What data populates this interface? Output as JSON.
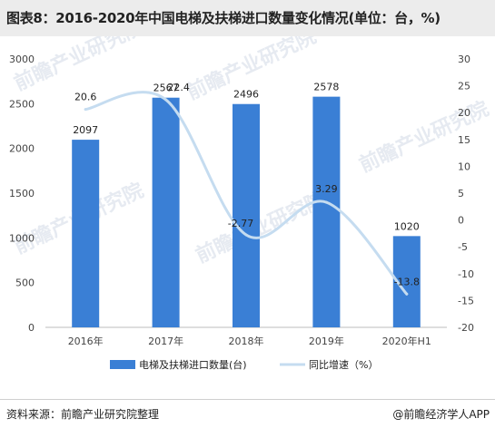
{
  "header": {
    "title": "图表8：2016-2020年中国电梯及扶梯进口数量变化情况(单位：台，%)"
  },
  "footer": {
    "source": "资料来源：前瞻产业研究院整理",
    "brand": "@前瞻经济学人APP"
  },
  "watermark": {
    "text": "前瞻产业研究院"
  },
  "chart_data": {
    "type": "bar",
    "categories": [
      "2016年",
      "2017年",
      "2018年",
      "2019年",
      "2020年H1"
    ],
    "series": [
      {
        "name": "电梯及扶梯进口数量(台)",
        "type": "bar",
        "axis": "left",
        "values": [
          2097,
          2567,
          2496,
          2578,
          1020
        ],
        "color": "#3a7fd5"
      },
      {
        "name": "同比增速（%）",
        "type": "line",
        "axis": "right",
        "values": [
          20.6,
          22.4,
          -2.77,
          3.29,
          -13.8
        ],
        "color": "#c5dcf0"
      }
    ],
    "left_axis": {
      "min": 0,
      "max": 3000,
      "ticks": [
        0,
        500,
        1000,
        1500,
        2000,
        2500,
        3000
      ]
    },
    "right_axis": {
      "min": -20,
      "max": 30,
      "ticks": [
        -20,
        -15,
        -10,
        -5,
        0,
        5,
        10,
        15,
        20,
        25,
        30
      ]
    },
    "data_labels": {
      "bar": [
        "2097",
        "2567",
        "2496",
        "2578",
        "1020"
      ],
      "line": [
        "20.6",
        "22.4",
        "-2.77",
        "3.29",
        "-13.8"
      ]
    },
    "legend_position": "bottom",
    "grid": false
  }
}
